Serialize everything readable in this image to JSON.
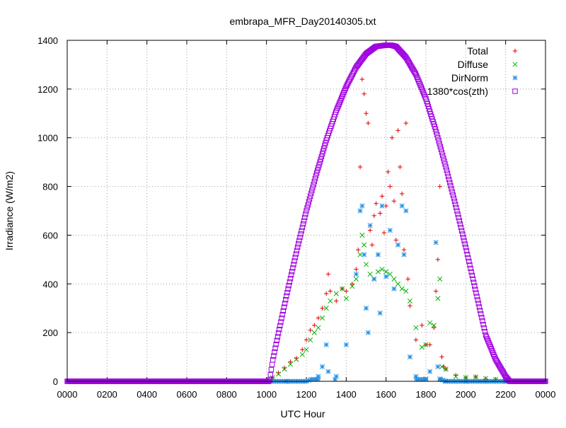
{
  "chart_data": {
    "type": "scatter",
    "title": "embrapa_MFR_Day20140305.txt",
    "xlabel": "UTC Hour",
    "ylabel": "Irradiance (W/m2)",
    "xlim": [
      0,
      2400
    ],
    "ylim": [
      0,
      1400
    ],
    "x_tick_labels": [
      "0000",
      "0200",
      "0400",
      "0600",
      "0800",
      "1000",
      "1200",
      "1400",
      "1600",
      "1800",
      "2000",
      "2200",
      "0000"
    ],
    "y_tick_labels": [
      "0",
      "200",
      "400",
      "600",
      "800",
      "1000",
      "1200",
      "1400"
    ],
    "grid": true,
    "legend_position": "top-right",
    "series": [
      {
        "name": "Total",
        "marker": "plus",
        "color": "#e00000",
        "x": [
          1030,
          1060,
          1090,
          1120,
          1150,
          1180,
          1200,
          1220,
          1240,
          1260,
          1280,
          1300,
          1310,
          1320,
          1350,
          1380,
          1400,
          1430,
          1450,
          1460,
          1470,
          1480,
          1490,
          1500,
          1510,
          1520,
          1530,
          1540,
          1550,
          1560,
          1570,
          1580,
          1590,
          1600,
          1610,
          1620,
          1630,
          1640,
          1650,
          1660,
          1670,
          1680,
          1690,
          1700,
          1710,
          1720,
          1750,
          1780,
          1800,
          1820,
          1840,
          1850,
          1860,
          1870,
          1880,
          1890,
          1900,
          1950,
          2000,
          2050,
          2100,
          2150,
          2200
        ],
        "y": [
          15,
          35,
          55,
          80,
          95,
          130,
          170,
          210,
          230,
          260,
          300,
          360,
          440,
          370,
          330,
          380,
          370,
          400,
          460,
          540,
          880,
          1240,
          1180,
          1100,
          1060,
          620,
          560,
          680,
          730,
          520,
          690,
          760,
          610,
          720,
          860,
          800,
          1000,
          740,
          580,
          1030,
          880,
          770,
          540,
          1060,
          420,
          310,
          170,
          230,
          150,
          150,
          220,
          370,
          500,
          800,
          100,
          60,
          50,
          25,
          15,
          18,
          10,
          8,
          3
        ]
      },
      {
        "name": "Diffuse",
        "marker": "cross",
        "color": "#00b000",
        "x": [
          1030,
          1060,
          1090,
          1120,
          1150,
          1180,
          1200,
          1220,
          1240,
          1260,
          1280,
          1300,
          1320,
          1350,
          1380,
          1400,
          1430,
          1450,
          1470,
          1480,
          1490,
          1500,
          1520,
          1540,
          1560,
          1580,
          1600,
          1620,
          1640,
          1660,
          1680,
          1700,
          1720,
          1750,
          1780,
          1800,
          1820,
          1840,
          1860,
          1870,
          1880,
          1900,
          1950,
          2000,
          2050,
          2100,
          2150,
          2200
        ],
        "y": [
          15,
          30,
          50,
          70,
          90,
          110,
          130,
          170,
          200,
          220,
          260,
          300,
          330,
          360,
          380,
          340,
          390,
          420,
          520,
          600,
          560,
          480,
          440,
          420,
          450,
          460,
          450,
          440,
          420,
          400,
          380,
          370,
          330,
          220,
          140,
          150,
          240,
          230,
          340,
          420,
          60,
          50,
          20,
          15,
          18,
          12,
          8,
          3
        ]
      },
      {
        "name": "DirNorm",
        "marker": "star",
        "color": "#1e8ae0",
        "x": [
          1000,
          1100,
          1200,
          1260,
          1280,
          1300,
          1310,
          1350,
          1400,
          1450,
          1470,
          1480,
          1490,
          1500,
          1510,
          1520,
          1540,
          1560,
          1570,
          1580,
          1600,
          1620,
          1640,
          1660,
          1680,
          1690,
          1700,
          1720,
          1750,
          1800,
          1820,
          1850,
          1860,
          1870,
          1900,
          2000,
          2100,
          2200
        ],
        "y": [
          0,
          0,
          0,
          20,
          60,
          150,
          40,
          20,
          150,
          440,
          700,
          720,
          520,
          300,
          200,
          640,
          420,
          520,
          280,
          720,
          430,
          620,
          380,
          560,
          720,
          520,
          700,
          100,
          20,
          10,
          40,
          570,
          60,
          10,
          0,
          0,
          0,
          0
        ]
      },
      {
        "name": "1380*cos(zth)",
        "marker": "square",
        "color": "#a000e0",
        "x": [
          0,
          1000,
          1015,
          1030,
          1050,
          1100,
          1150,
          1200,
          1250,
          1300,
          1350,
          1400,
          1450,
          1500,
          1550,
          1600,
          1625,
          1650,
          1700,
          1750,
          1800,
          1850,
          1900,
          1950,
          2000,
          2050,
          2100,
          2150,
          2200,
          2220,
          2235,
          2400
        ],
        "y": [
          0,
          0,
          0,
          80,
          160,
          350,
          530,
          700,
          850,
          990,
          1110,
          1210,
          1290,
          1345,
          1375,
          1380,
          1380,
          1375,
          1330,
          1260,
          1160,
          1030,
          880,
          720,
          550,
          370,
          190,
          90,
          20,
          0,
          0,
          0
        ]
      }
    ]
  }
}
